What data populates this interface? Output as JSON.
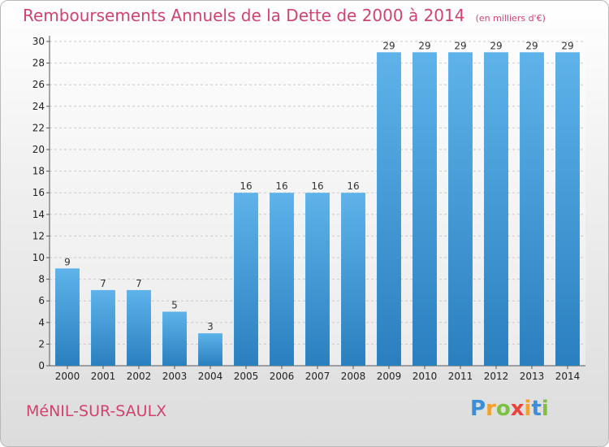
{
  "title": "Remboursements Annuels de la Dette de 2000 à 2014",
  "unit": "(en milliers d'€)",
  "commune": "MéNIL-SUR-SAULX",
  "logo": {
    "letters": [
      "P",
      "r",
      "o",
      "x",
      "i",
      "t",
      "i"
    ],
    "colors": [
      "#3a8fd8",
      "#f2a12c",
      "#7cc143",
      "#e8443b",
      "#f2a12c",
      "#3a8fd8",
      "#7cc143"
    ]
  },
  "colors": {
    "bar_top": "#5fb3ea",
    "bar_bottom": "#2a7fbf",
    "title": "#d2426e",
    "grid": "#cccccc"
  },
  "chart_data": {
    "type": "bar",
    "title": "Remboursements Annuels de la Dette de 2000 à 2014",
    "categories": [
      "2000",
      "2001",
      "2002",
      "2003",
      "2004",
      "2005",
      "2006",
      "2007",
      "2008",
      "2009",
      "2010",
      "2011",
      "2012",
      "2013",
      "2014"
    ],
    "values": [
      9,
      7,
      7,
      5,
      3,
      16,
      16,
      16,
      16,
      29,
      29,
      29,
      29,
      29,
      29
    ],
    "ylim": [
      0,
      30
    ],
    "yticks": [
      0,
      2,
      4,
      6,
      8,
      10,
      12,
      14,
      16,
      18,
      20,
      22,
      24,
      26,
      28,
      30
    ],
    "grid": true,
    "data_labels": true
  }
}
